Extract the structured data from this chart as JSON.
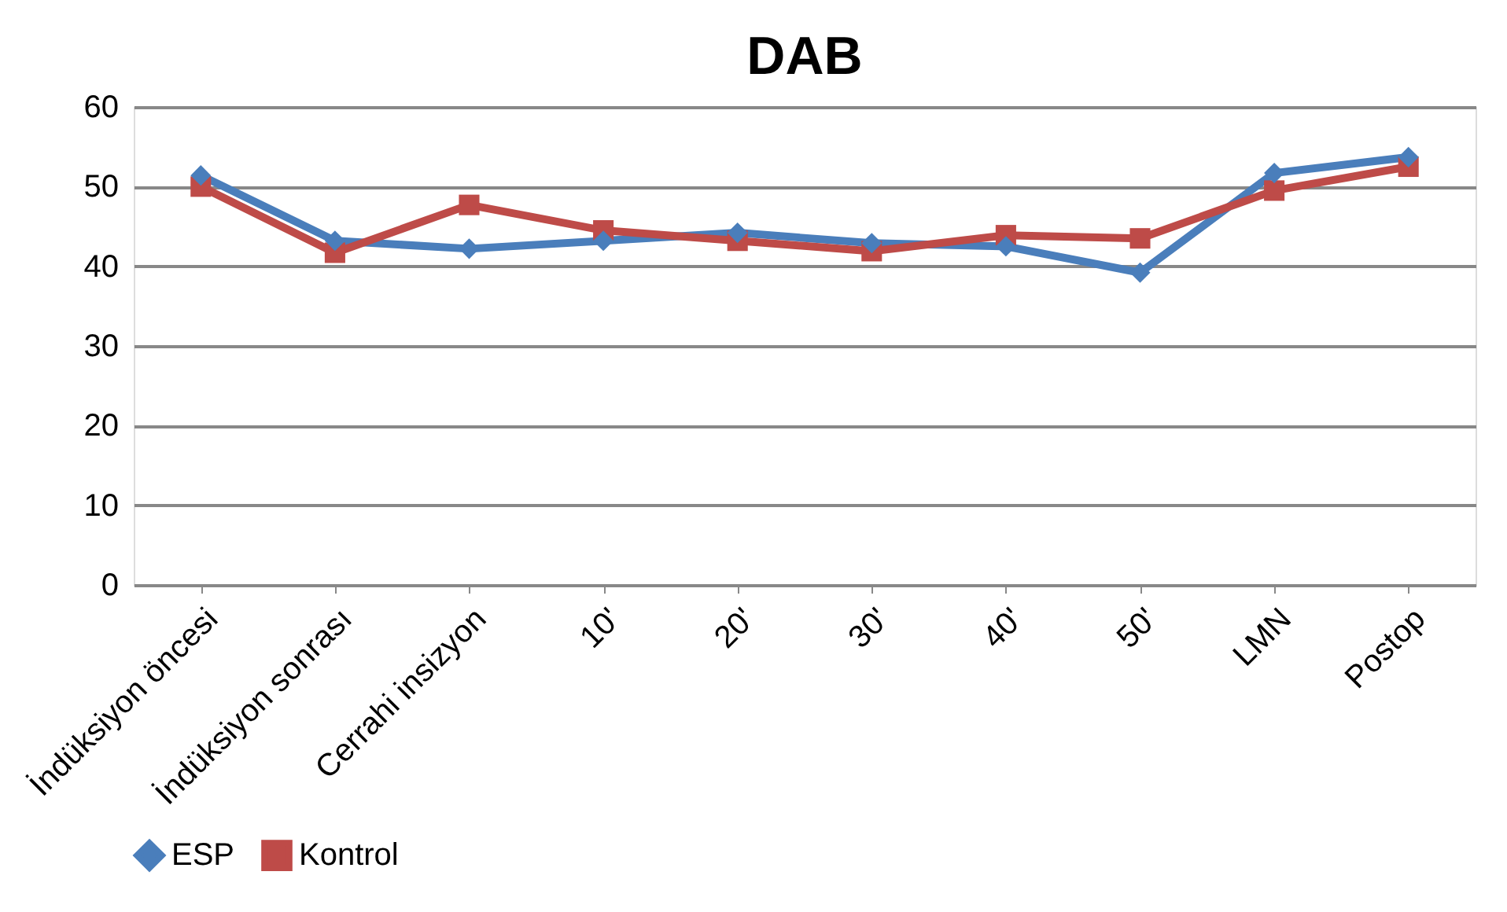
{
  "chart_data": {
    "type": "line",
    "title": "DAB",
    "categories": [
      "İndüksiyon öncesi",
      "İndüksiyon sonrası",
      "Cerrahi insizyon",
      "10'",
      "20'",
      "30'",
      "40'",
      "50'",
      "LMN",
      "Postop"
    ],
    "series": [
      {
        "name": "ESP",
        "color": "#4a7ebb",
        "marker": "diamond",
        "values": [
          51.4,
          43.2,
          42.2,
          43.2,
          44.2,
          42.9,
          42.5,
          39.2,
          51.7,
          53.7
        ]
      },
      {
        "name": "Kontrol",
        "color": "#be4b48",
        "marker": "square",
        "values": [
          50,
          41.7,
          47.7,
          44.5,
          43.2,
          41.9,
          43.9,
          43.5,
          49.5,
          52.5
        ]
      }
    ],
    "ylim": [
      0,
      60
    ],
    "yticks": [
      0,
      10,
      20,
      30,
      40,
      50,
      60
    ],
    "grid": "y",
    "legend": "bottom",
    "line_style": "solid"
  }
}
